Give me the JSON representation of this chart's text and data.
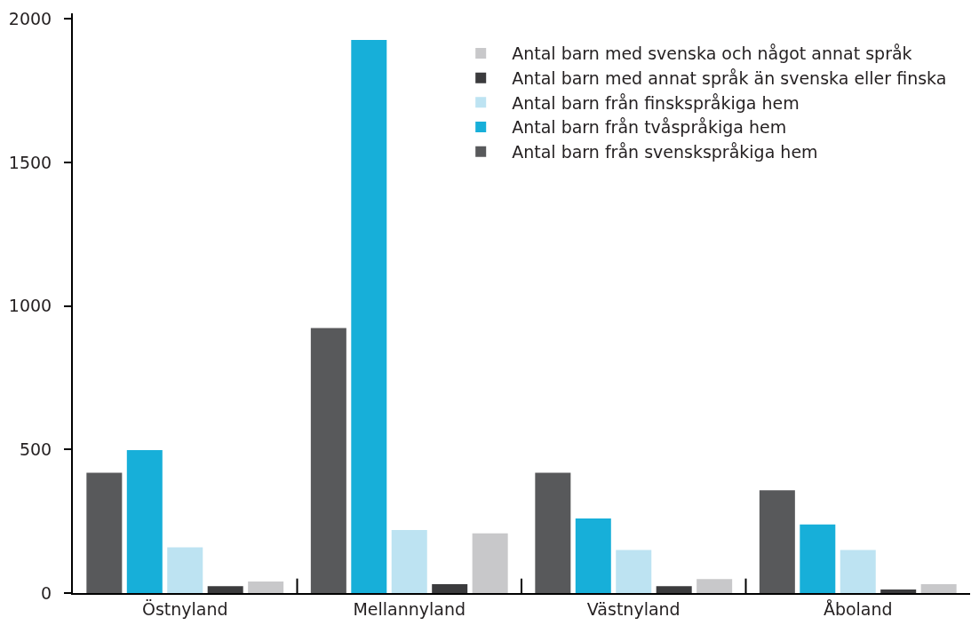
{
  "chart_data": {
    "type": "bar",
    "categories": [
      "Östnyland",
      "Mellannyland",
      "Västnyland",
      "Åboland"
    ],
    "series": [
      {
        "name": "Antal barn från svenskspråkiga hem",
        "color": "#58595b",
        "values": [
          419,
          923,
          419,
          358
        ]
      },
      {
        "name": "Antal barn från tvåspråkiga hem",
        "color": "#17afd9",
        "values": [
          498,
          1927,
          260,
          239
        ]
      },
      {
        "name": "Antal barn från finskspråkiga hem",
        "color": "#bde3f2",
        "values": [
          159,
          220,
          150,
          150
        ]
      },
      {
        "name": "Antal barn med annat språk än svenska eller finska",
        "color": "#3b3b3d",
        "values": [
          24,
          31,
          24,
          12
        ]
      },
      {
        "name": "Antal barn med svenska och något annat språk",
        "color": "#c8c8ca",
        "values": [
          40,
          208,
          49,
          31
        ]
      }
    ],
    "ylim": [
      0,
      2020
    ],
    "yticks": [
      0,
      500,
      1000,
      1500,
      2000
    ],
    "legend": "top right"
  }
}
